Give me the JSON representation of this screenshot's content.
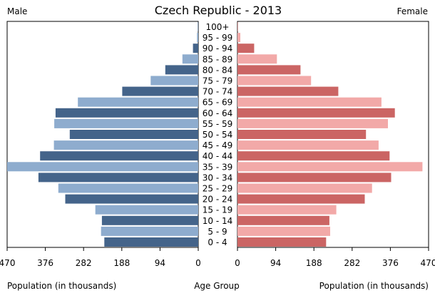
{
  "chart_data": {
    "type": "bar",
    "title": "Czech Republic - 2013",
    "left_label": "Male",
    "right_label": "Female",
    "xlabel_left": "Population (in thousands)",
    "xlabel_center": "Age Group",
    "xlabel_right": "Population (in thousands)",
    "xlim": [
      0,
      470
    ],
    "x_ticks": [
      470,
      376,
      282,
      188,
      94,
      0
    ],
    "categories": [
      "100+",
      "95 - 99",
      "90 - 94",
      "85 - 89",
      "80 - 84",
      "75 - 79",
      "70 - 74",
      "65 - 69",
      "60 - 64",
      "55 - 59",
      "50 - 54",
      "45 - 49",
      "40 - 44",
      "35 - 39",
      "30 - 34",
      "25 - 29",
      "20 - 24",
      "15 - 19",
      "10 - 14",
      "5 - 9",
      "0 - 4"
    ],
    "series": [
      {
        "name": "Male",
        "colors": [
          "#44648a",
          "#8eacce"
        ],
        "values": [
          1,
          3,
          13,
          39,
          81,
          117,
          187,
          296,
          351,
          354,
          316,
          355,
          389,
          470,
          393,
          344,
          327,
          253,
          237,
          239,
          231
        ]
      },
      {
        "name": "Female",
        "colors": [
          "#cb6564",
          "#f2a9a8"
        ],
        "values": [
          1,
          7,
          41,
          97,
          155,
          181,
          248,
          354,
          387,
          370,
          316,
          347,
          374,
          455,
          378,
          331,
          313,
          243,
          226,
          228,
          218
        ]
      }
    ],
    "grid": false,
    "legend": "none"
  }
}
